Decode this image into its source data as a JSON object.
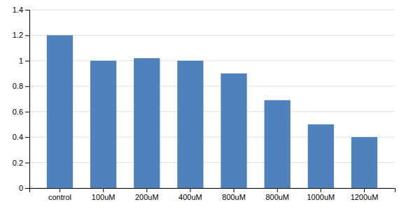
{
  "chart_data": {
    "type": "bar",
    "categories": [
      "control",
      "100uM",
      "200uM",
      "400uM",
      "800uM",
      "800uM",
      "1000uM",
      "1200uM"
    ],
    "values": [
      1.2,
      1.0,
      1.02,
      1.0,
      0.9,
      0.69,
      0.5,
      0.4
    ],
    "color": "#4F81BD",
    "ylim": [
      0,
      1.4
    ],
    "yticks": [
      0,
      0.2,
      0.4,
      0.6,
      0.8,
      1,
      1.2,
      1.4
    ],
    "grid": true
  }
}
